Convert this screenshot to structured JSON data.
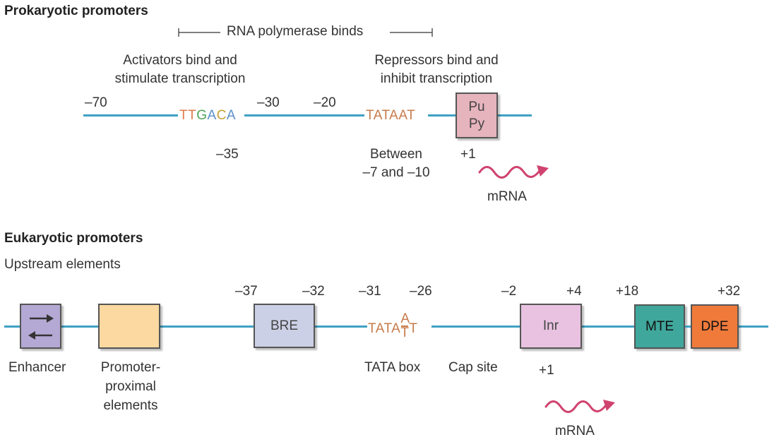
{
  "prokaryotic": {
    "heading": "Prokaryotic promoters",
    "polymerase": "RNA polymerase binds",
    "activators_line1": "Activators bind and",
    "activators_line2": "stimulate transcription",
    "repressors_line1": "Repressors bind and",
    "repressors_line2": "inhibit transcription",
    "pos_m70": "–70",
    "pos_m30": "–30",
    "pos_m20": "–20",
    "pos_m35": "–35",
    "seq_ttgaca": [
      "T",
      "T",
      "G",
      "A",
      "C",
      "A"
    ],
    "seq_tataat": "TATAAT",
    "pu": "Pu",
    "py": "Py",
    "between_line1": "Between",
    "between_line2": "–7 and –10",
    "plus1": "+1",
    "mrna": "mRNA"
  },
  "eukaryotic": {
    "heading": "Eukaryotic promoters",
    "subheading": "Upstream elements",
    "pos_m37": "–37",
    "pos_m32": "–32",
    "pos_m31": "–31",
    "pos_m26": "–26",
    "pos_m2": "–2",
    "pos_p4": "+4",
    "pos_p18": "+18",
    "pos_p32": "+32",
    "bre": "BRE",
    "tata_prefix": "TATA",
    "tata_top": "A",
    "tata_bottom": "T",
    "tata_suffix": "T",
    "inr": "Inr",
    "mte": "MTE",
    "dpe": "DPE",
    "enhancer": "Enhancer",
    "promoter_line1": "Promoter-",
    "promoter_line2": "proximal",
    "promoter_line3": "elements",
    "tata_box": "TATA box",
    "cap_site": "Cap site",
    "plus1": "+1",
    "mrna": "mRNA"
  },
  "colors": {
    "dna_line": "#3fa1c4",
    "mrna": "#d0436f",
    "pupy_box": "#e6b4bd",
    "enhancer_box": "#b4a8d4",
    "promoter_box": "#fbd9a0",
    "bre_box": "#ccd0e6",
    "inr_box": "#e8c2e0",
    "mte_box": "#3fa79b",
    "dpe_box": "#ef7a3a",
    "seq_T": "#e07a4a",
    "seq_G": "#4fa35a",
    "seq_A": "#5b8fc9",
    "seq_C": "#c8a13a"
  },
  "icons": [
    "arrow-right-icon",
    "arrow-left-icon",
    "mrna-wave-arrow-icon"
  ]
}
